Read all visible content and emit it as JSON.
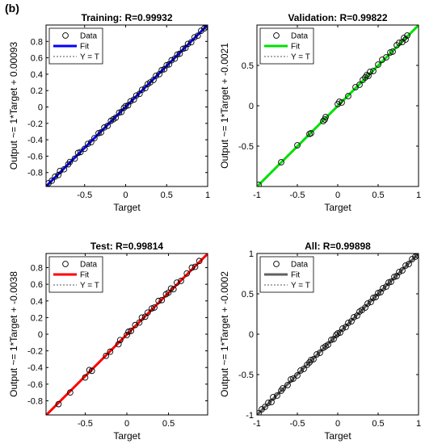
{
  "figure": {
    "panel_label": "(b)"
  },
  "chart_data": [
    {
      "type": "scatter",
      "title": "Training: R=0.99932",
      "xlabel": "Target",
      "ylabel": "Output ~= 1*Target + 0.00093",
      "xlim": [
        -0.97,
        1.0
      ],
      "ylim": [
        -0.97,
        1.0
      ],
      "xticks": [
        -0.5,
        0,
        0.5,
        1
      ],
      "xtick_labels": [
        "-0.5",
        "0",
        "0.5",
        "1"
      ],
      "yticks": [
        -0.8,
        -0.6,
        -0.4,
        -0.2,
        0,
        0.2,
        0.4,
        0.6,
        0.8
      ],
      "ytick_labels": [
        "-0.8",
        "-0.6",
        "-0.4",
        "-0.2",
        "0",
        "0.2",
        "0.4",
        "0.6",
        "0.8"
      ],
      "fit_color": "#0000ff",
      "fit": {
        "slope": 1,
        "intercept": 0.00093
      },
      "legend": {
        "position": "top-left",
        "entries": [
          "Data",
          "Fit",
          "Y = T"
        ]
      },
      "data_points": [
        [
          -0.94,
          -0.93
        ],
        [
          -0.9,
          -0.9
        ],
        [
          -0.86,
          -0.85
        ],
        [
          -0.82,
          -0.83
        ],
        [
          -0.8,
          -0.78
        ],
        [
          -0.75,
          -0.76
        ],
        [
          -0.7,
          -0.7
        ],
        [
          -0.68,
          -0.67
        ],
        [
          -0.62,
          -0.63
        ],
        [
          -0.58,
          -0.56
        ],
        [
          -0.55,
          -0.55
        ],
        [
          -0.5,
          -0.51
        ],
        [
          -0.46,
          -0.45
        ],
        [
          -0.42,
          -0.43
        ],
        [
          -0.38,
          -0.38
        ],
        [
          -0.33,
          -0.32
        ],
        [
          -0.3,
          -0.31
        ],
        [
          -0.26,
          -0.25
        ],
        [
          -0.22,
          -0.23
        ],
        [
          -0.18,
          -0.17
        ],
        [
          -0.15,
          -0.15
        ],
        [
          -0.12,
          -0.13
        ],
        [
          -0.08,
          -0.07
        ],
        [
          -0.05,
          -0.06
        ],
        [
          -0.02,
          -0.01
        ],
        [
          0.0,
          0.01
        ],
        [
          0.03,
          0.02
        ],
        [
          0.06,
          0.07
        ],
        [
          0.1,
          0.09
        ],
        [
          0.13,
          0.14
        ],
        [
          0.17,
          0.16
        ],
        [
          0.2,
          0.21
        ],
        [
          0.24,
          0.23
        ],
        [
          0.27,
          0.28
        ],
        [
          0.3,
          0.3
        ],
        [
          0.34,
          0.33
        ],
        [
          0.37,
          0.38
        ],
        [
          0.41,
          0.4
        ],
        [
          0.44,
          0.45
        ],
        [
          0.47,
          0.46
        ],
        [
          0.5,
          0.51
        ],
        [
          0.53,
          0.52
        ],
        [
          0.56,
          0.57
        ],
        [
          0.6,
          0.59
        ],
        [
          0.63,
          0.64
        ],
        [
          0.66,
          0.65
        ],
        [
          0.7,
          0.71
        ],
        [
          0.73,
          0.72
        ],
        [
          0.76,
          0.77
        ],
        [
          0.8,
          0.79
        ],
        [
          0.84,
          0.85
        ],
        [
          0.88,
          0.87
        ],
        [
          0.92,
          0.93
        ],
        [
          0.96,
          0.96
        ],
        [
          0.99,
          0.98
        ]
      ]
    },
    {
      "type": "scatter",
      "title": "Validation: R=0.99822",
      "xlabel": "Target",
      "ylabel": "Output ~= 1*Target + -0.0021",
      "xlim": [
        -1.0,
        1.0
      ],
      "ylim": [
        -1.0,
        1.0
      ],
      "xticks": [
        -1,
        -0.5,
        0,
        0.5,
        1
      ],
      "xtick_labels": [
        "-1",
        "-0.5",
        "0",
        "0.5",
        "1"
      ],
      "yticks": [
        -0.5,
        0,
        0.5
      ],
      "ytick_labels": [
        "-0.5",
        "0",
        "0.5"
      ],
      "fit_color": "#00e000",
      "fit": {
        "slope": 1,
        "intercept": -0.0021
      },
      "legend": {
        "position": "top-left",
        "entries": [
          "Data",
          "Fit",
          "Y = T"
        ]
      },
      "data_points": [
        [
          -0.98,
          -0.98
        ],
        [
          -0.7,
          -0.7
        ],
        [
          -0.5,
          -0.49
        ],
        [
          -0.35,
          -0.35
        ],
        [
          -0.33,
          -0.34
        ],
        [
          -0.18,
          -0.19
        ],
        [
          -0.16,
          -0.17
        ],
        [
          -0.15,
          -0.14
        ],
        [
          0.0,
          0.02
        ],
        [
          0.02,
          0.05
        ],
        [
          0.05,
          0.04
        ],
        [
          0.13,
          0.12
        ],
        [
          0.22,
          0.23
        ],
        [
          0.27,
          0.26
        ],
        [
          0.31,
          0.32
        ],
        [
          0.34,
          0.35
        ],
        [
          0.36,
          0.38
        ],
        [
          0.38,
          0.37
        ],
        [
          0.4,
          0.42
        ],
        [
          0.44,
          0.43
        ],
        [
          0.5,
          0.51
        ],
        [
          0.55,
          0.57
        ],
        [
          0.6,
          0.6
        ],
        [
          0.65,
          0.66
        ],
        [
          0.68,
          0.67
        ],
        [
          0.73,
          0.75
        ],
        [
          0.76,
          0.78
        ],
        [
          0.8,
          0.79
        ],
        [
          0.82,
          0.84
        ],
        [
          0.84,
          0.82
        ],
        [
          0.86,
          0.87
        ]
      ]
    },
    {
      "type": "scatter",
      "title": "Test: R=0.99814",
      "xlabel": "Target",
      "ylabel": "Output ~= 1*Target + -0.0038",
      "xlim": [
        -0.97,
        0.97
      ],
      "ylim": [
        -0.97,
        0.97
      ],
      "xticks": [
        -0.5,
        0,
        0.5
      ],
      "xtick_labels": [
        "-0.5",
        "0",
        "0.5"
      ],
      "yticks": [
        -0.8,
        -0.6,
        -0.4,
        -0.2,
        0,
        0.2,
        0.4,
        0.6,
        0.8
      ],
      "ytick_labels": [
        "-0.8",
        "-0.6",
        "-0.4",
        "-0.2",
        "0",
        "0.2",
        "0.4",
        "0.6",
        "0.8"
      ],
      "fit_color": "#ff0000",
      "fit": {
        "slope": 1,
        "intercept": -0.0038
      },
      "legend": {
        "position": "top-left",
        "entries": [
          "Data",
          "Fit",
          "Y = T"
        ]
      },
      "data_points": [
        [
          -0.82,
          -0.84
        ],
        [
          -0.68,
          -0.7
        ],
        [
          -0.5,
          -0.52
        ],
        [
          -0.45,
          -0.43
        ],
        [
          -0.42,
          -0.44
        ],
        [
          -0.25,
          -0.26
        ],
        [
          -0.2,
          -0.21
        ],
        [
          -0.1,
          -0.12
        ],
        [
          -0.08,
          -0.07
        ],
        [
          0.0,
          -0.01
        ],
        [
          0.02,
          0.03
        ],
        [
          0.05,
          0.04
        ],
        [
          0.1,
          0.11
        ],
        [
          0.15,
          0.14
        ],
        [
          0.18,
          0.2
        ],
        [
          0.22,
          0.21
        ],
        [
          0.25,
          0.26
        ],
        [
          0.3,
          0.31
        ],
        [
          0.33,
          0.32
        ],
        [
          0.38,
          0.4
        ],
        [
          0.42,
          0.41
        ],
        [
          0.47,
          0.48
        ],
        [
          0.5,
          0.5
        ],
        [
          0.53,
          0.55
        ],
        [
          0.56,
          0.54
        ],
        [
          0.6,
          0.62
        ],
        [
          0.65,
          0.64
        ],
        [
          0.72,
          0.73
        ],
        [
          0.78,
          0.8
        ],
        [
          0.82,
          0.81
        ],
        [
          0.87,
          0.88
        ]
      ]
    },
    {
      "type": "scatter",
      "title": "All: R=0.99898",
      "xlabel": "Target",
      "ylabel": "Output ~= 1*Target + -0.0002",
      "xlim": [
        -1.0,
        1.0
      ],
      "ylim": [
        -1.0,
        1.0
      ],
      "xticks": [
        -1,
        -0.5,
        0,
        0.5,
        1
      ],
      "xtick_labels": [
        "-1",
        "-0.5",
        "0",
        "0.5",
        "1"
      ],
      "yticks": [
        -1,
        -0.5,
        0,
        0.5,
        1
      ],
      "ytick_labels": [
        "-1",
        "-0.5",
        "0",
        "0.5",
        "1"
      ],
      "fit_color": "#606060",
      "fit": {
        "slope": 1,
        "intercept": -0.0002
      },
      "legend": {
        "position": "top-left",
        "entries": [
          "Data",
          "Fit",
          "Y = T"
        ]
      },
      "data_points": [
        [
          -0.98,
          -0.98
        ],
        [
          -0.94,
          -0.93
        ],
        [
          -0.9,
          -0.9
        ],
        [
          -0.86,
          -0.85
        ],
        [
          -0.82,
          -0.84
        ],
        [
          -0.8,
          -0.78
        ],
        [
          -0.75,
          -0.76
        ],
        [
          -0.7,
          -0.7
        ],
        [
          -0.68,
          -0.67
        ],
        [
          -0.62,
          -0.63
        ],
        [
          -0.58,
          -0.56
        ],
        [
          -0.55,
          -0.55
        ],
        [
          -0.5,
          -0.51
        ],
        [
          -0.46,
          -0.45
        ],
        [
          -0.42,
          -0.43
        ],
        [
          -0.38,
          -0.38
        ],
        [
          -0.35,
          -0.35
        ],
        [
          -0.33,
          -0.32
        ],
        [
          -0.3,
          -0.31
        ],
        [
          -0.26,
          -0.25
        ],
        [
          -0.22,
          -0.23
        ],
        [
          -0.18,
          -0.17
        ],
        [
          -0.15,
          -0.15
        ],
        [
          -0.12,
          -0.13
        ],
        [
          -0.08,
          -0.07
        ],
        [
          -0.05,
          -0.06
        ],
        [
          -0.02,
          -0.01
        ],
        [
          0.0,
          0.01
        ],
        [
          0.03,
          0.02
        ],
        [
          0.06,
          0.07
        ],
        [
          0.1,
          0.09
        ],
        [
          0.13,
          0.14
        ],
        [
          0.17,
          0.16
        ],
        [
          0.2,
          0.21
        ],
        [
          0.24,
          0.23
        ],
        [
          0.27,
          0.28
        ],
        [
          0.3,
          0.3
        ],
        [
          0.34,
          0.33
        ],
        [
          0.37,
          0.38
        ],
        [
          0.41,
          0.4
        ],
        [
          0.44,
          0.45
        ],
        [
          0.47,
          0.46
        ],
        [
          0.5,
          0.51
        ],
        [
          0.53,
          0.52
        ],
        [
          0.56,
          0.57
        ],
        [
          0.6,
          0.59
        ],
        [
          0.63,
          0.64
        ],
        [
          0.66,
          0.65
        ],
        [
          0.7,
          0.71
        ],
        [
          0.73,
          0.72
        ],
        [
          0.76,
          0.77
        ],
        [
          0.8,
          0.79
        ],
        [
          0.84,
          0.85
        ],
        [
          0.88,
          0.87
        ],
        [
          0.92,
          0.93
        ],
        [
          0.96,
          0.96
        ],
        [
          0.99,
          0.98
        ]
      ]
    }
  ]
}
